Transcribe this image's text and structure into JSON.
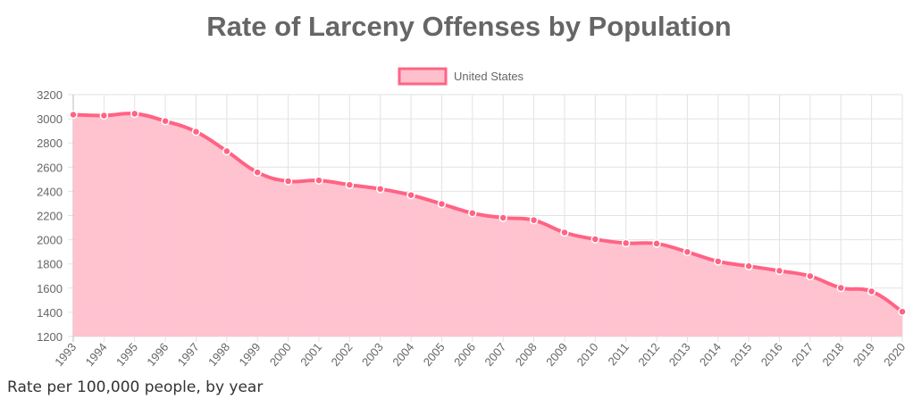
{
  "chart_data": {
    "type": "area",
    "title": "Rate of Larceny Offenses by Population",
    "xlabel": "",
    "ylabel": "",
    "caption": "Rate per 100,000 people, by year",
    "legend": {
      "position": "top",
      "entries": [
        "United States"
      ]
    },
    "grid": true,
    "ylim": [
      1200,
      3200
    ],
    "yticks": [
      1200,
      1400,
      1600,
      1800,
      2000,
      2200,
      2400,
      2600,
      2800,
      3000,
      3200
    ],
    "categories": [
      "1993",
      "1994",
      "1995",
      "1996",
      "1997",
      "1998",
      "1999",
      "2000",
      "2001",
      "2002",
      "2003",
      "2004",
      "2005",
      "2006",
      "2007",
      "2008",
      "2009",
      "2010",
      "2011",
      "2012",
      "2013",
      "2014",
      "2015",
      "2016",
      "2017",
      "2018",
      "2019",
      "2020"
    ],
    "series": [
      {
        "name": "United States",
        "line_color": "#ff6384",
        "fill_color": "#ffc0cd",
        "values": [
          3034,
          3027,
          3042,
          2981,
          2893,
          2732,
          2557,
          2484,
          2491,
          2454,
          2420,
          2369,
          2296,
          2220,
          2182,
          2162,
          2060,
          2004,
          1972,
          1968,
          1899,
          1821,
          1782,
          1743,
          1699,
          1602,
          1573,
          1405
        ]
      }
    ]
  }
}
